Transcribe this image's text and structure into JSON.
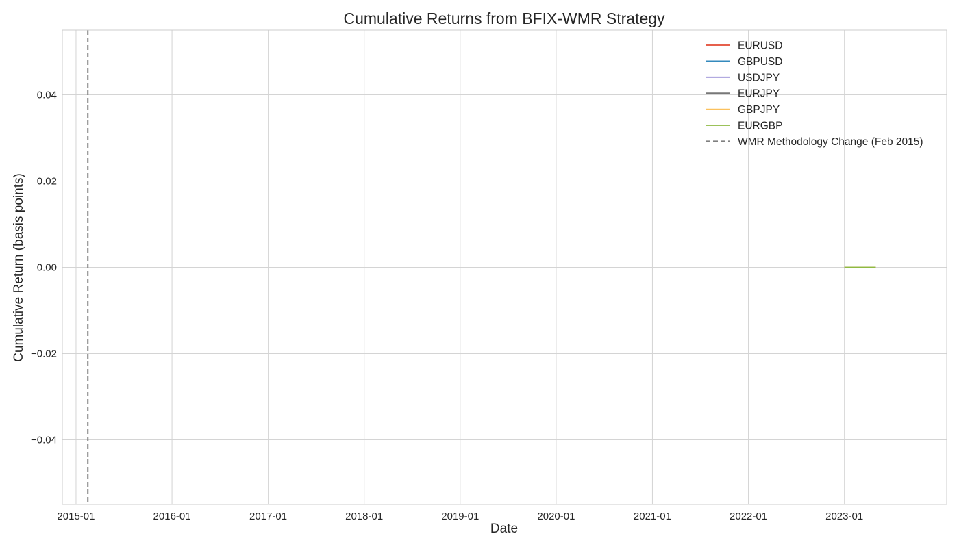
{
  "chart_data": {
    "type": "line",
    "title": "Cumulative Returns from BFIX-WMR Strategy",
    "xlabel": "Date",
    "ylabel": "Cumulative Return (basis points)",
    "x_axis": {
      "type": "date",
      "range": [
        "2014-11-10",
        "2024-01-25"
      ],
      "tick_labels": [
        "2015-01",
        "2016-01",
        "2017-01",
        "2018-01",
        "2019-01",
        "2020-01",
        "2021-01",
        "2022-01",
        "2023-01"
      ],
      "tick_dates": [
        "2015-01-01",
        "2016-01-01",
        "2017-01-01",
        "2018-01-01",
        "2019-01-01",
        "2020-01-01",
        "2021-01-01",
        "2022-01-01",
        "2023-01-01"
      ]
    },
    "y_axis": {
      "range": [
        -0.055,
        0.055
      ],
      "tick_labels": [
        "0.04",
        "0.02",
        "0.00",
        "−0.02",
        "−0.04"
      ],
      "tick_values": [
        0.04,
        0.02,
        0.0,
        -0.02,
        -0.04
      ]
    },
    "grid": true,
    "legend_position": "top-right",
    "series": [
      {
        "name": "EURUSD",
        "color": "#E24A33",
        "x": [
          "2023-01-01",
          "2023-04-30"
        ],
        "y": [
          0.0,
          0.0
        ]
      },
      {
        "name": "GBPUSD",
        "color": "#348ABD",
        "x": [
          "2023-01-01",
          "2023-04-30"
        ],
        "y": [
          0.0,
          0.0
        ]
      },
      {
        "name": "USDJPY",
        "color": "#988ED5",
        "x": [
          "2023-01-01",
          "2023-04-30"
        ],
        "y": [
          0.0,
          0.0
        ]
      },
      {
        "name": "EURJPY",
        "color": "#777777",
        "x": [
          "2023-01-01",
          "2023-04-30"
        ],
        "y": [
          0.0,
          0.0
        ]
      },
      {
        "name": "GBPJPY",
        "color": "#FBC15E",
        "x": [
          "2023-01-01",
          "2023-04-30"
        ],
        "y": [
          0.0,
          0.0
        ]
      },
      {
        "name": "EURGBP",
        "color": "#8EBA42",
        "x": [
          "2023-01-01",
          "2023-04-30"
        ],
        "y": [
          0.0,
          0.0
        ]
      }
    ],
    "annotations": [
      {
        "type": "vline",
        "x": "2015-02-15",
        "label": "WMR Methodology Change (Feb 2015)",
        "color": "#808080",
        "style": "dashed"
      }
    ]
  }
}
